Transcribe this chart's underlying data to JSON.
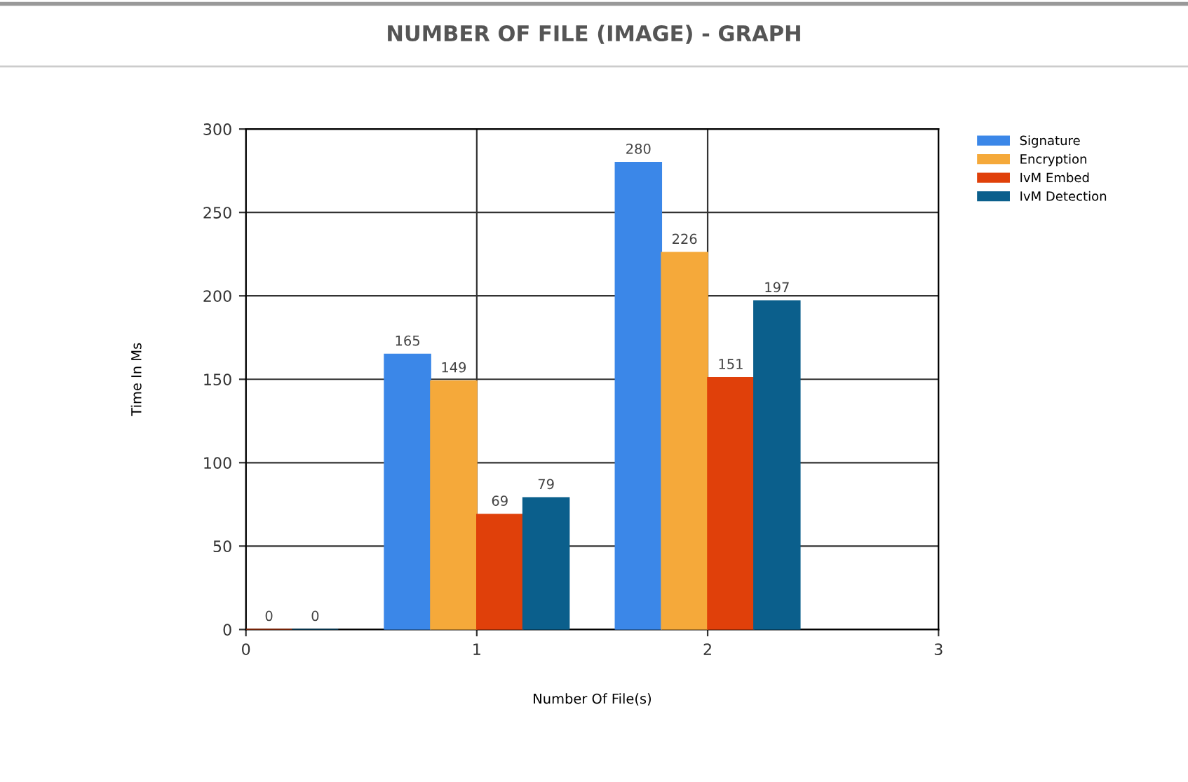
{
  "chart_data": {
    "type": "bar",
    "title": "NUMBER OF FILE (IMAGE) - GRAPH",
    "xlabel": "Number Of File(s)",
    "ylabel": "Time In Ms",
    "xlim": [
      0,
      3
    ],
    "xticks": [
      0,
      1,
      2,
      3
    ],
    "ylim": [
      0,
      300
    ],
    "yticks": [
      0,
      50,
      100,
      150,
      200,
      250,
      300
    ],
    "series": [
      {
        "name": "Signature",
        "color": "#3b87e8",
        "x": [
          1,
          2
        ],
        "values": [
          165,
          280
        ]
      },
      {
        "name": "Encryption",
        "color": "#f5a93a",
        "x": [
          1,
          2
        ],
        "values": [
          149,
          226
        ]
      },
      {
        "name": "IvM Embed",
        "color": "#e0400a",
        "x": [
          0,
          1,
          2
        ],
        "values": [
          0,
          69,
          151
        ]
      },
      {
        "name": "IvM Detection",
        "color": "#0b5f8c",
        "x": [
          0,
          1,
          2
        ],
        "values": [
          0,
          79,
          197
        ]
      }
    ],
    "data_labels": true,
    "grid": true,
    "legend": "top right"
  }
}
